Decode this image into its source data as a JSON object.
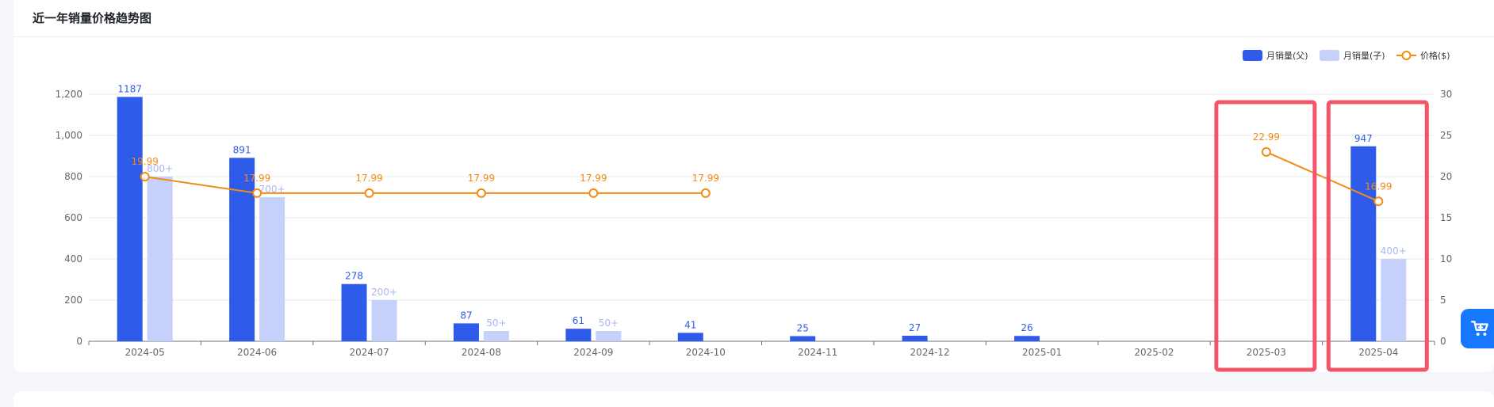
{
  "card": {
    "title": "近一年销量价格趋势图"
  },
  "colors": {
    "parent": "#2e5be9",
    "child": "#c5d0fb",
    "price": "#f28c12",
    "highlight": "#f2546a",
    "cart": "#1677ff"
  },
  "cart": {
    "icon": "shopping-cart-icon"
  },
  "chart_data": {
    "type": "bar",
    "categories": [
      "2024-05",
      "2024-06",
      "2024-07",
      "2024-08",
      "2024-09",
      "2024-10",
      "2024-11",
      "2024-12",
      "2025-01",
      "2025-02",
      "2025-03",
      "2025-04"
    ],
    "series": [
      {
        "name": "月销量(父)",
        "kind": "bar",
        "axis": "left",
        "values": [
          1187,
          891,
          278,
          87,
          61,
          41,
          25,
          27,
          26,
          null,
          null,
          947
        ],
        "labels": [
          "1187",
          "891",
          "278",
          "87",
          "61",
          "41",
          "25",
          "27",
          "26",
          "",
          "",
          "947"
        ]
      },
      {
        "name": "月销量(子)",
        "kind": "bar",
        "axis": "left",
        "values": [
          800,
          700,
          200,
          50,
          50,
          null,
          null,
          null,
          null,
          null,
          null,
          400
        ],
        "labels": [
          "800+",
          "700+",
          "200+",
          "50+",
          "50+",
          "",
          "",
          "",
          "",
          "",
          "",
          "400+"
        ]
      },
      {
        "name": "价格($)",
        "kind": "line",
        "axis": "right",
        "values": [
          19.99,
          17.99,
          17.99,
          17.99,
          17.99,
          17.99,
          null,
          null,
          null,
          null,
          22.99,
          16.99
        ],
        "labels": [
          "19.99",
          "17.99",
          "17.99",
          "17.99",
          "17.99",
          "17.99",
          "",
          "",
          "",
          "",
          "22.99",
          "16.99"
        ]
      }
    ],
    "ylim_left": [
      0,
      1200
    ],
    "yticks_left": [
      "0",
      "200",
      "400",
      "600",
      "800",
      "1,000",
      "1,200"
    ],
    "ylim_right": [
      0,
      30
    ],
    "yticks_right": [
      "0",
      "5",
      "10",
      "15",
      "20",
      "25",
      "30"
    ],
    "grid": true,
    "legend": "top-right",
    "highlighted_categories": [
      "2025-03",
      "2025-04"
    ]
  }
}
